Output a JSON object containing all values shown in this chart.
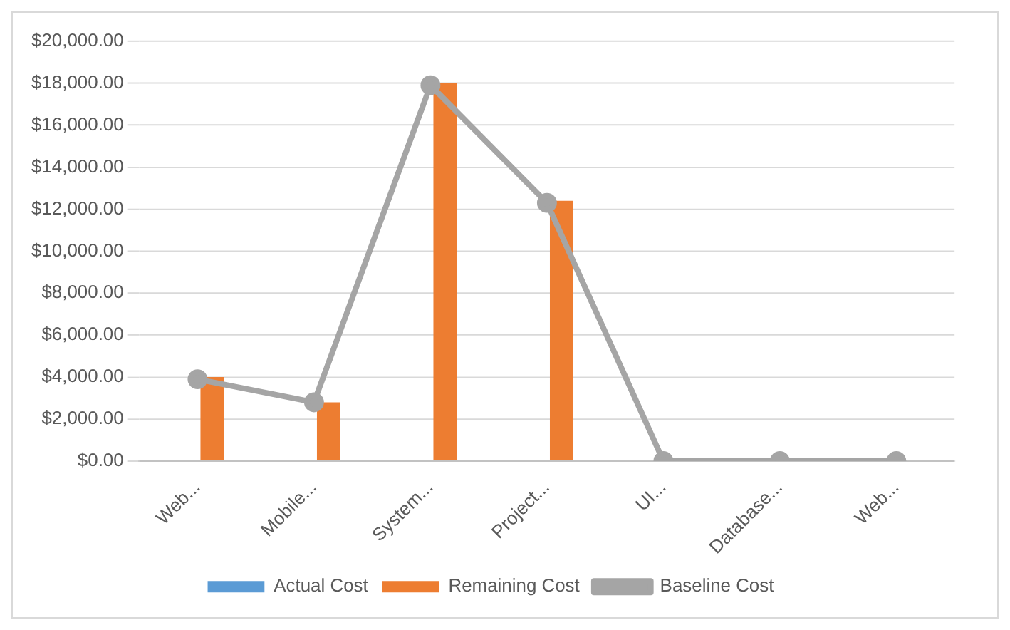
{
  "chart_data": {
    "type": "bar",
    "categories": [
      "Web...",
      "Mobile...",
      "System...",
      "Project...",
      "UI...",
      "Database...",
      "Web..."
    ],
    "series": [
      {
        "name": "Actual Cost",
        "color": "#5b9bd5",
        "values": [
          0,
          0,
          0,
          0,
          0,
          0,
          0
        ]
      },
      {
        "name": "Remaining Cost",
        "color": "#ed7d31",
        "values": [
          4000,
          2800,
          18000,
          12400,
          0,
          0,
          0
        ]
      },
      {
        "name": "Baseline Cost",
        "type": "line",
        "color": "#a5a5a5",
        "values": [
          3900,
          2800,
          17900,
          12300,
          0,
          0,
          0
        ]
      }
    ],
    "ylim": [
      0,
      20000
    ],
    "yticks": [
      {
        "value": 0,
        "label": "$0.00"
      },
      {
        "value": 2000,
        "label": "$2,000.00"
      },
      {
        "value": 4000,
        "label": "$4,000.00"
      },
      {
        "value": 6000,
        "label": "$6,000.00"
      },
      {
        "value": 8000,
        "label": "$8,000.00"
      },
      {
        "value": 10000,
        "label": "$10,000.00"
      },
      {
        "value": 12000,
        "label": "$12,000.00"
      },
      {
        "value": 14000,
        "label": "$14,000.00"
      },
      {
        "value": 16000,
        "label": "$16,000.00"
      },
      {
        "value": 18000,
        "label": "$18,000.00"
      },
      {
        "value": 20000,
        "label": "$20,000.00"
      }
    ],
    "grid": "y",
    "legend": "bottom",
    "marker": "circle",
    "line_style": "solid"
  }
}
